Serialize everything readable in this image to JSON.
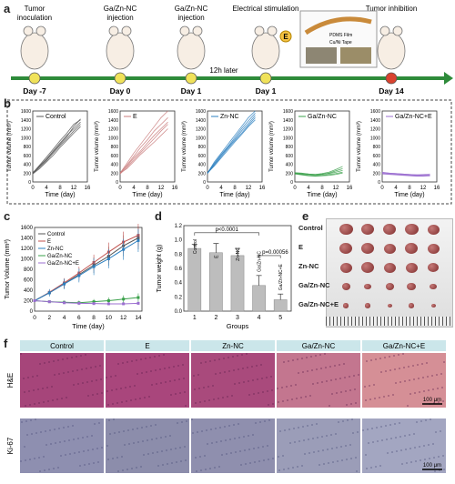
{
  "panels": {
    "a": "a",
    "b": "b",
    "c": "c",
    "d": "d",
    "e": "e",
    "f": "f"
  },
  "timeline": {
    "events": [
      {
        "label": "Tumor\ninoculation",
        "day": "Day -7"
      },
      {
        "label": "Ga/Zn-NC\ninjection",
        "day": "Day 0"
      },
      {
        "label": "Ga/Zn-NC\ninjection",
        "day": "Day 1"
      },
      {
        "label": "Electrical stimulation",
        "day": "Day 1"
      },
      {
        "label": "Tumor inhibition",
        "day": "Day 14"
      }
    ],
    "note": "12h later",
    "device_labels": [
      "PDMS Film",
      "Cu/Ni Tape"
    ],
    "stim_badge": "E",
    "colors": {
      "line": "#2e8b3a",
      "node": "#f0e25a",
      "final": "#d9432f"
    }
  },
  "chart_data": [
    {
      "type": "line",
      "title": "Control",
      "series_color": "#555555",
      "xlabel": "Time (day)",
      "ylabel": "Tumor volume (mm³)",
      "xticks": [
        0,
        4,
        8,
        12,
        16
      ],
      "yticks": [
        0,
        200,
        400,
        600,
        800,
        1000,
        1200,
        1400,
        1600
      ],
      "xlim": [
        0,
        16
      ],
      "ylim": [
        0,
        1600
      ],
      "x": [
        0,
        2,
        4,
        6,
        8,
        10,
        12,
        14
      ],
      "series": [
        {
          "values": [
            200,
            380,
            560,
            740,
            930,
            1100,
            1300,
            1400
          ]
        },
        {
          "values": [
            210,
            360,
            520,
            700,
            880,
            1050,
            1200,
            1350
          ]
        },
        {
          "values": [
            190,
            330,
            480,
            650,
            820,
            980,
            1150,
            1300
          ]
        },
        {
          "values": [
            180,
            300,
            450,
            600,
            780,
            940,
            1100,
            1250
          ]
        },
        {
          "values": [
            200,
            350,
            500,
            680,
            850,
            1020,
            1250,
            1420
          ]
        }
      ]
    },
    {
      "type": "line",
      "title": "E",
      "series_color": "#c97b7b",
      "xlabel": "Time (day)",
      "ylabel": "Tumor volume (mm³)",
      "xticks": [
        0,
        4,
        8,
        12,
        16
      ],
      "yticks": [
        0,
        200,
        400,
        600,
        800,
        1000,
        1200,
        1400,
        1600
      ],
      "xlim": [
        0,
        16
      ],
      "ylim": [
        0,
        1600
      ],
      "x": [
        0,
        2,
        4,
        6,
        8,
        10,
        12,
        14
      ],
      "series": [
        {
          "values": [
            200,
            420,
            650,
            850,
            1050,
            1250,
            1450,
            1600
          ]
        },
        {
          "values": [
            190,
            380,
            580,
            780,
            950,
            1150,
            1300,
            1450
          ]
        },
        {
          "values": [
            210,
            360,
            540,
            700,
            880,
            1050,
            1200,
            1350
          ]
        },
        {
          "values": [
            180,
            330,
            500,
            660,
            820,
            980,
            1150,
            1300
          ]
        },
        {
          "values": [
            200,
            300,
            460,
            620,
            760,
            900,
            1050,
            1200
          ]
        }
      ]
    },
    {
      "type": "line",
      "title": "Zn-NC",
      "series_color": "#2a7fc0",
      "xlabel": "Time (day)",
      "ylabel": "Tumor volume (mm³)",
      "xticks": [
        0,
        4,
        8,
        12,
        16
      ],
      "yticks": [
        0,
        200,
        400,
        600,
        800,
        1000,
        1200,
        1400,
        1600
      ],
      "xlim": [
        0,
        16
      ],
      "ylim": [
        0,
        1600
      ],
      "x": [
        0,
        2,
        4,
        6,
        8,
        10,
        12,
        14
      ],
      "series": [
        {
          "values": [
            200,
            450,
            650,
            850,
            1050,
            1250,
            1450,
            1600
          ]
        },
        {
          "values": [
            200,
            420,
            620,
            800,
            1000,
            1200,
            1380,
            1550
          ]
        },
        {
          "values": [
            190,
            400,
            600,
            780,
            960,
            1150,
            1320,
            1500
          ]
        },
        {
          "values": [
            210,
            380,
            570,
            760,
            930,
            1100,
            1280,
            1450
          ]
        },
        {
          "values": [
            200,
            360,
            540,
            720,
            900,
            1070,
            1250,
            1400
          ]
        }
      ]
    },
    {
      "type": "line",
      "title": "Ga/Zn-NC",
      "series_color": "#3aa04a",
      "xlabel": "Time (day)",
      "ylabel": "Tumor volume (mm³)",
      "xticks": [
        0,
        4,
        8,
        12,
        16
      ],
      "yticks": [
        0,
        200,
        400,
        600,
        800,
        1000,
        1200,
        1400,
        1600
      ],
      "xlim": [
        0,
        16
      ],
      "ylim": [
        0,
        1600
      ],
      "x": [
        0,
        2,
        4,
        6,
        8,
        10,
        12,
        14
      ],
      "series": [
        {
          "values": [
            200,
            190,
            180,
            170,
            190,
            220,
            280,
            350
          ]
        },
        {
          "values": [
            190,
            180,
            170,
            160,
            170,
            200,
            250,
            300
          ]
        },
        {
          "values": [
            210,
            200,
            180,
            170,
            180,
            190,
            220,
            260
          ]
        },
        {
          "values": [
            200,
            170,
            150,
            140,
            150,
            170,
            190,
            220
          ]
        },
        {
          "values": [
            180,
            160,
            140,
            130,
            140,
            150,
            170,
            200
          ]
        }
      ]
    },
    {
      "type": "line",
      "title": "Ga/Zn-NC+E",
      "series_color": "#9b6fd0",
      "xlabel": "Time (day)",
      "ylabel": "Tumor volume (mm³)",
      "xticks": [
        0,
        4,
        8,
        12,
        16
      ],
      "yticks": [
        0,
        200,
        400,
        600,
        800,
        1000,
        1200,
        1400,
        1600
      ],
      "xlim": [
        0,
        16
      ],
      "ylim": [
        0,
        1600
      ],
      "x": [
        0,
        2,
        4,
        6,
        8,
        10,
        12,
        14
      ],
      "series": [
        {
          "values": [
            220,
            200,
            190,
            180,
            170,
            160,
            170,
            180
          ]
        },
        {
          "values": [
            200,
            190,
            180,
            170,
            160,
            150,
            150,
            160
          ]
        },
        {
          "values": [
            190,
            180,
            170,
            160,
            150,
            140,
            140,
            150
          ]
        },
        {
          "values": [
            180,
            170,
            160,
            150,
            140,
            130,
            130,
            140
          ]
        },
        {
          "values": [
            210,
            200,
            190,
            180,
            170,
            160,
            150,
            140
          ]
        }
      ]
    },
    {
      "type": "line",
      "xlabel": "Time (day)",
      "ylabel": "Tumor Volume (mm³)",
      "xticks": [
        0,
        2,
        4,
        6,
        8,
        10,
        12,
        14
      ],
      "yticks": [
        0,
        200,
        400,
        600,
        800,
        1000,
        1200,
        1400,
        1600
      ],
      "xlim": [
        0,
        14.5
      ],
      "ylim": [
        0,
        1600
      ],
      "x": [
        0,
        2,
        4,
        6,
        8,
        10,
        12,
        14
      ],
      "series": [
        {
          "name": "Control",
          "color": "#555555",
          "values": [
            200,
            350,
            520,
            700,
            880,
            1050,
            1250,
            1400
          ],
          "err": [
            20,
            60,
            90,
            120,
            150,
            180,
            200,
            220
          ]
        },
        {
          "name": "E",
          "color": "#c0504d",
          "values": [
            200,
            360,
            540,
            730,
            930,
            1130,
            1320,
            1450
          ],
          "err": [
            20,
            60,
            90,
            120,
            150,
            180,
            200,
            220
          ]
        },
        {
          "name": "Zn-NC",
          "color": "#2a7fc0",
          "values": [
            200,
            350,
            520,
            680,
            850,
            1000,
            1180,
            1350
          ],
          "err": [
            20,
            70,
            100,
            130,
            160,
            180,
            200,
            220
          ]
        },
        {
          "name": "Ga/Zn-NC",
          "color": "#3aa04a",
          "values": [
            200,
            180,
            170,
            160,
            180,
            200,
            230,
            260
          ],
          "err": [
            10,
            20,
            30,
            40,
            50,
            60,
            70,
            80
          ]
        },
        {
          "name": "Ga/Zn-NC+E",
          "color": "#9b6fd0",
          "values": [
            200,
            180,
            160,
            150,
            145,
            140,
            140,
            150
          ],
          "err": [
            10,
            15,
            20,
            20,
            25,
            25,
            25,
            30
          ]
        }
      ],
      "legend": "top-left"
    },
    {
      "type": "bar",
      "xlabel": "Groups",
      "ylabel": "Tumor weight (g)",
      "categories": [
        "1",
        "2",
        "3",
        "4",
        "5"
      ],
      "bar_labels": [
        "Control",
        "E",
        "Zn-NC",
        "Ga/Zn-NC",
        "Ga/Zn-NC+E"
      ],
      "values": [
        0.88,
        0.82,
        0.78,
        0.36,
        0.16
      ],
      "err": [
        0.06,
        0.13,
        0.1,
        0.14,
        0.08
      ],
      "ylim": [
        0,
        1.2
      ],
      "yticks": [
        0.0,
        0.2,
        0.4,
        0.6,
        0.8,
        1.0,
        1.2
      ],
      "annotations": [
        {
          "text": "p<0.0001",
          "from": 1,
          "to": 4
        },
        {
          "text": "p=0.00056",
          "from": 4,
          "to": 5
        }
      ],
      "bar_color": "#bdbdbd"
    }
  ],
  "photo": {
    "rows": [
      "Control",
      "E",
      "Zn-NC",
      "Ga/Zn-NC",
      "Ga/Zn-NC+E"
    ]
  },
  "histology": {
    "columns": [
      "Control",
      "E",
      "Zn-NC",
      "Ga/Zn-NC",
      "Ga/Zn-NC+E"
    ],
    "rows": [
      "H&E",
      "Ki-67"
    ],
    "scale_bar": "100 μm"
  }
}
